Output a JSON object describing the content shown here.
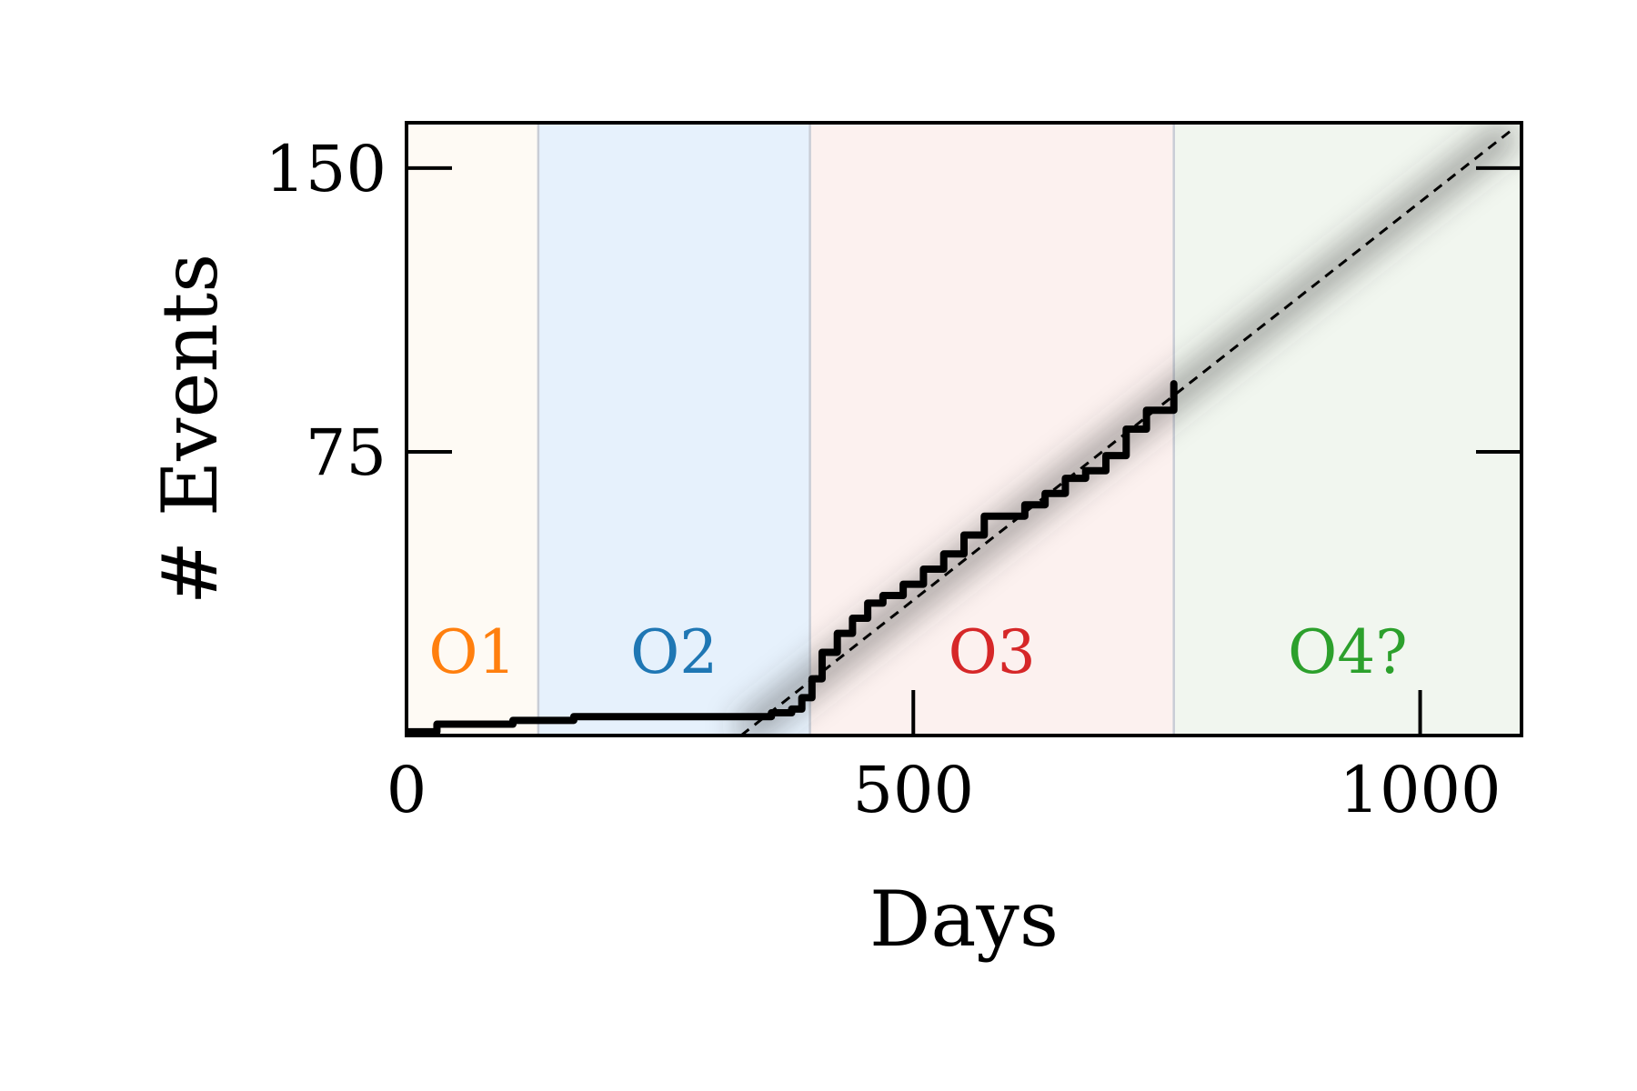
{
  "chart_data": {
    "type": "line",
    "xlabel": "Days",
    "ylabel": "# Events",
    "xlim": [
      0,
      1100
    ],
    "ylim": [
      0,
      162
    ],
    "xticks": [
      0,
      500,
      1000
    ],
    "yticks": [
      75,
      150
    ],
    "grid": false,
    "regions": [
      {
        "label": "O1",
        "start": 0,
        "end": 130,
        "color": "#ff7f0e",
        "fill": "#fefaf4"
      },
      {
        "label": "O2",
        "start": 130,
        "end": 398,
        "color": "#1f77b4",
        "fill": "#e6f1fc"
      },
      {
        "label": "O3",
        "start": 398,
        "end": 757,
        "color": "#d62728",
        "fill": "#fcf1ef"
      },
      {
        "label": "O4?",
        "start": 757,
        "end": 1100,
        "color": "#2ca02c",
        "fill": "#f1f6ef"
      }
    ],
    "series": [
      {
        "style": "solid",
        "color": "#000000",
        "x": [
          0,
          30,
          105,
          165,
          320,
          360,
          380,
          390,
          400,
          410,
          425,
          440,
          455,
          470,
          490,
          510,
          530,
          550,
          570,
          590,
          610,
          630,
          650,
          670,
          690,
          710,
          730,
          757
        ],
        "y": [
          1,
          3,
          4,
          5,
          5,
          6,
          7,
          10,
          15,
          22,
          27,
          31,
          35,
          37,
          40,
          44,
          48,
          53,
          58,
          58,
          61,
          64,
          68,
          70,
          74,
          81,
          86,
          93
        ]
      },
      {
        "style": "dashed",
        "color": "#000000",
        "x": [
          330,
          1090
        ],
        "y": [
          0,
          160
        ]
      }
    ]
  }
}
